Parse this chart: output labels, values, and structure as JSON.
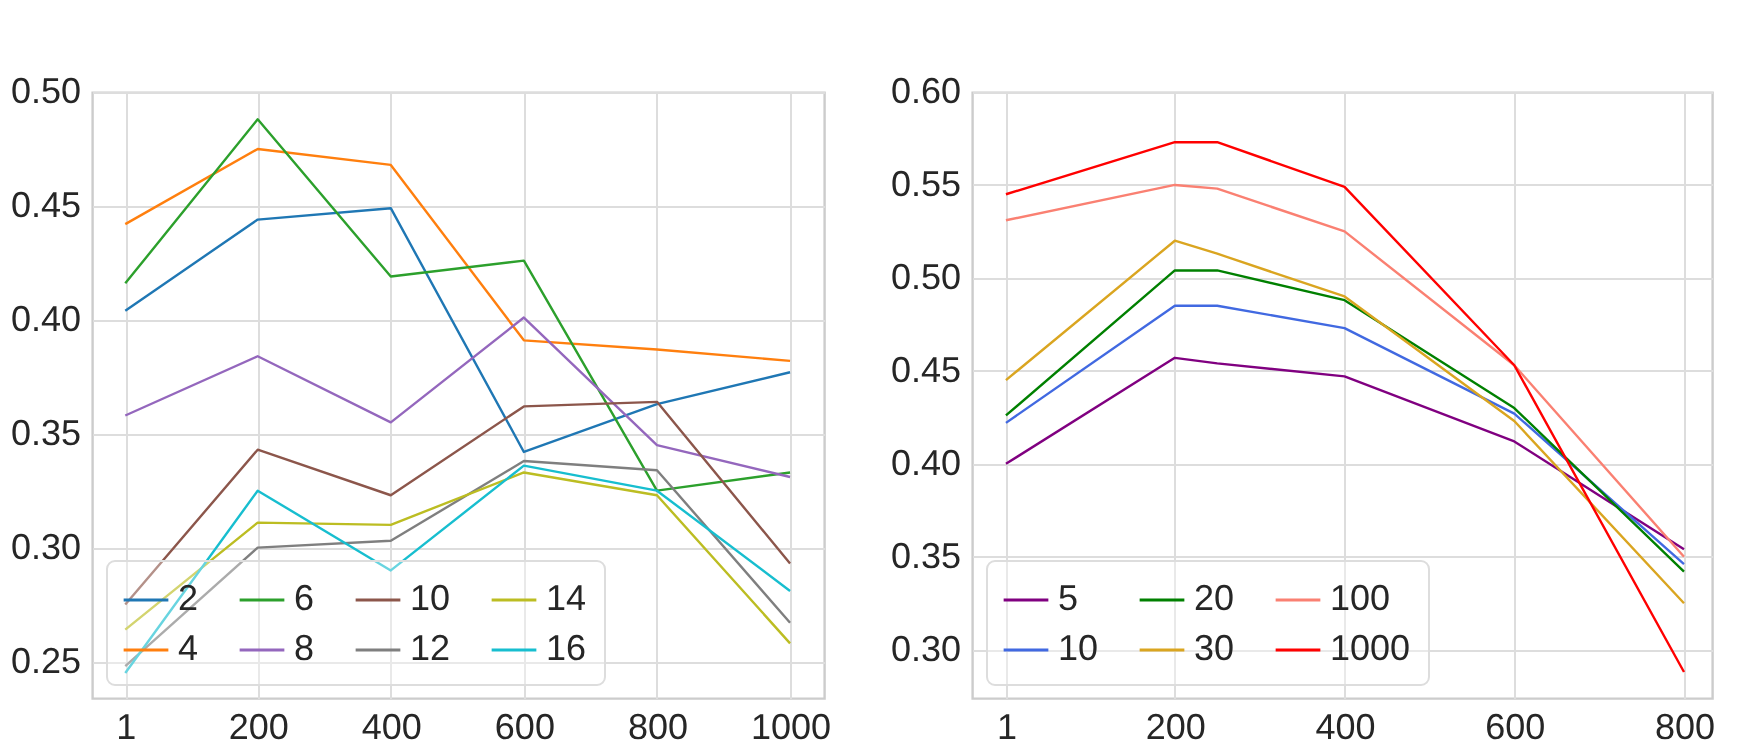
{
  "chart_data": [
    {
      "type": "line",
      "x": [
        1,
        200,
        400,
        600,
        800,
        1000
      ],
      "xlim": [
        -49,
        1051
      ],
      "xticks": [
        1,
        200,
        400,
        600,
        800,
        1000
      ],
      "ylim": [
        0.234,
        0.5
      ],
      "yticks": [
        {
          "value": 0.25,
          "label": "0.25"
        },
        {
          "value": 0.3,
          "label": "0.30"
        },
        {
          "value": 0.35,
          "label": "0.35"
        },
        {
          "value": 0.4,
          "label": "0.40"
        },
        {
          "value": 0.45,
          "label": "0.45"
        },
        {
          "value": 0.5,
          "label": "0.50"
        }
      ],
      "grid": true,
      "legend": "bottom left",
      "marker": "none",
      "line_style": "solid",
      "series": [
        {
          "name": "2",
          "color": "#1f77b4",
          "values": [
            0.404,
            0.444,
            0.449,
            0.342,
            0.363,
            0.377
          ]
        },
        {
          "name": "4",
          "color": "#ff7f0e",
          "values": [
            0.442,
            0.475,
            0.468,
            0.391,
            0.387,
            0.382
          ]
        },
        {
          "name": "6",
          "color": "#2ca02c",
          "values": [
            0.416,
            0.488,
            0.419,
            0.426,
            0.325,
            0.333
          ]
        },
        {
          "name": "8",
          "color": "#9467bd",
          "values": [
            0.358,
            0.384,
            0.355,
            0.401,
            0.345,
            0.331
          ]
        },
        {
          "name": "10",
          "color": "#8c564b",
          "values": [
            0.275,
            0.343,
            0.323,
            0.362,
            0.364,
            0.293
          ]
        },
        {
          "name": "12",
          "color": "#7f7f7f",
          "values": [
            0.248,
            0.3,
            0.303,
            0.338,
            0.334,
            0.267
          ]
        },
        {
          "name": "14",
          "color": "#bcbd22",
          "values": [
            0.264,
            0.311,
            0.31,
            0.333,
            0.323,
            0.258
          ]
        },
        {
          "name": "16",
          "color": "#17becf",
          "values": [
            0.245,
            0.325,
            0.29,
            0.336,
            0.325,
            0.281
          ]
        }
      ]
    },
    {
      "type": "line",
      "x": [
        1,
        200,
        250,
        400,
        600,
        800
      ],
      "xlim": [
        -39,
        833
      ],
      "xticks": [
        1,
        200,
        400,
        600,
        800
      ],
      "ylim": [
        0.274,
        0.6
      ],
      "yticks": [
        {
          "value": 0.3,
          "label": "0.30"
        },
        {
          "value": 0.35,
          "label": "0.35"
        },
        {
          "value": 0.4,
          "label": "0.40"
        },
        {
          "value": 0.45,
          "label": "0.45"
        },
        {
          "value": 0.5,
          "label": "0.50"
        },
        {
          "value": 0.55,
          "label": "0.55"
        },
        {
          "value": 0.6,
          "label": "0.60"
        }
      ],
      "grid": true,
      "legend": "bottom left",
      "marker": "none",
      "line_style": "solid",
      "series": [
        {
          "name": "5",
          "color": "#800080",
          "values": [
            0.4,
            0.457,
            0.454,
            0.447,
            0.412,
            0.354
          ]
        },
        {
          "name": "10",
          "color": "#4169e1",
          "values": [
            0.422,
            0.485,
            0.485,
            0.473,
            0.427,
            0.346
          ]
        },
        {
          "name": "20",
          "color": "#008000",
          "values": [
            0.426,
            0.504,
            0.504,
            0.488,
            0.43,
            0.342
          ]
        },
        {
          "name": "30",
          "color": "#daa520",
          "values": [
            0.445,
            0.52,
            0.513,
            0.49,
            0.423,
            0.325
          ]
        },
        {
          "name": "100",
          "color": "#fa8072",
          "values": [
            0.531,
            0.55,
            0.548,
            0.525,
            0.453,
            0.35
          ]
        },
        {
          "name": "1000",
          "color": "#ff0000",
          "values": [
            0.545,
            0.573,
            0.573,
            0.549,
            0.453,
            0.288
          ]
        }
      ]
    }
  ]
}
